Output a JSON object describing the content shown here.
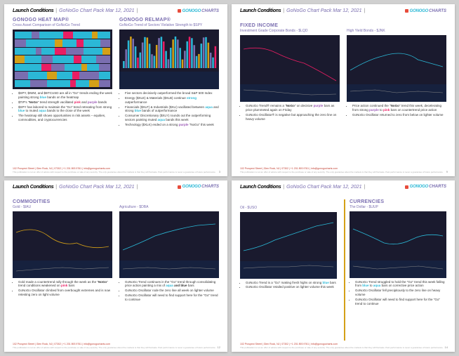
{
  "header": {
    "launch": "Launch Conditions",
    "subtitle": "GoNoGo Chart Pack Mar 12, 2021",
    "logo_go": "GONOGO",
    "logo_charts": "CHARTS"
  },
  "footer_address": "102 Prospect Street | Glen Rock, NJ | 07302 | +1 201 893 9761 | info@gonogocharts.com",
  "disclaimer": "This publication is not an offer of advice with respect to the purchase or sale of any security. The only guarantee about the markets is that they will fluctuate. Past performance is never a guarantee of future performance.",
  "slide1": {
    "left_title": "GONOGO HEAT MAP®",
    "left_sub": "Cross Asset Comparison of GoNoGo Trend",
    "right_title": "GONOGO RELMAP®",
    "right_sub": "GoNoGo Trend of Sectors' Relative Strength to $SPY",
    "heatmap_rows": [
      [
        [
          "#2bb8d6",
          18
        ],
        [
          "#7a6eb0",
          8
        ],
        [
          "#2bb8d6",
          25
        ],
        [
          "#e91e63",
          10
        ],
        [
          "#2bb8d6",
          20
        ],
        [
          "#d4a017",
          6
        ],
        [
          "#2bb8d6",
          13
        ]
      ],
      [
        [
          "#7a6eb0",
          12
        ],
        [
          "#2bb8d6",
          30
        ],
        [
          "#d4a017",
          8
        ],
        [
          "#2bb8d6",
          15
        ],
        [
          "#e91e63",
          7
        ],
        [
          "#2bb8d6",
          18
        ],
        [
          "#7a6eb0",
          10
        ]
      ],
      [
        [
          "#2bb8d6",
          22
        ],
        [
          "#7a6eb0",
          6
        ],
        [
          "#2bb8d6",
          14
        ],
        [
          "#e91e63",
          12
        ],
        [
          "#7a6eb0",
          18
        ],
        [
          "#2bb8d6",
          20
        ],
        [
          "#d4a017",
          8
        ]
      ],
      [
        [
          "#d4a017",
          10
        ],
        [
          "#2bb8d6",
          18
        ],
        [
          "#7a6eb0",
          12
        ],
        [
          "#2bb8d6",
          22
        ],
        [
          "#e91e63",
          8
        ],
        [
          "#2bb8d6",
          15
        ],
        [
          "#7a6eb0",
          15
        ]
      ],
      [
        [
          "#2bb8d6",
          28
        ],
        [
          "#e91e63",
          10
        ],
        [
          "#7a6eb0",
          14
        ],
        [
          "#2bb8d6",
          18
        ],
        [
          "#d4a017",
          6
        ],
        [
          "#2bb8d6",
          12
        ],
        [
          "#7a6eb0",
          12
        ]
      ],
      [
        [
          "#7a6eb0",
          14
        ],
        [
          "#2bb8d6",
          20
        ],
        [
          "#d4a017",
          10
        ],
        [
          "#2bb8d6",
          16
        ],
        [
          "#e91e63",
          8
        ],
        [
          "#7a6eb0",
          20
        ],
        [
          "#2bb8d6",
          12
        ]
      ],
      [
        [
          "#2bb8d6",
          16
        ],
        [
          "#7a6eb0",
          18
        ],
        [
          "#2bb8d6",
          24
        ],
        [
          "#e91e63",
          6
        ],
        [
          "#2bb8d6",
          14
        ],
        [
          "#d4a017",
          10
        ],
        [
          "#7a6eb0",
          12
        ]
      ]
    ],
    "left_bullets": [
      "$SPY, $IWM, and $BTCUSD are all in \"Go\" trends ending the week painting strong <span class=\"blue\">blue</span> bands on the heatmap",
      "$TIP's \"<span class=\"nodice\">NoGo</span>\" trend strength vacillated <span class=\"pink\">pink</span> and <span class=\"purple\">purple</span> bands",
      "$SPY has labored to maintain the \"Go\" trend retreating from strong <span class=\"blue\">blue</span> to muted <span class=\"blue\">aqua</span> bands to the close of the week",
      "The heatmap still shows opportunities in risk assets – equities, commodities, and cryptocurrencies"
    ],
    "right_bullets": [
      "Five sectors decisively outperformed the broad S&P 500 Index",
      "Energy ($XLE) & Materials ($XLB) continue <span class=\"blue\">strong</span> outperformance",
      "Financials ($XLF) & Industrials ($XLI) vacillated between <span class=\"blue\">aqua</span> and strong <span class=\"blue\">blue</span> bands of outperformance",
      "Consumer Discretionary ($XLY) rounds out the outperforming sectors painting muted <span class=\"blue\">aqua</span> bands this week",
      "Technology ($XLK) ended on a strong <span class=\"purple\">purple</span> \"NoGo\" this week"
    ],
    "page": "3"
  },
  "slide2": {
    "section_title": "FIXED INCOME",
    "left_sub": "Investment Grade Corporate Bonds - $LQD",
    "right_sub": "High Yield Bonds - $JNK",
    "left_bullets": [
      "GoNoGo Trend® remains a \"<span class=\"nodice\">NoGo</span>\" on decisive <span class=\"purple\">purple</span> bars as price plummeted again on Friday",
      "GoNoGo Oscillator® is negative but approaching the zero line on heavy volume"
    ],
    "right_bullets": [
      "Price action continued the \"<span class=\"nodice\">NoGo</span>\" trend this week, decelerating from strong <span class=\"purple\">purple</span> to <span class=\"pink\">pink</span> bars on countertrend price action",
      "GoNoGo Oscillator returned to zero from below on lighter volume"
    ],
    "page": "9"
  },
  "slide3": {
    "section_title": "COMMODITIES",
    "left_sub": "Gold - $IAU",
    "right_sub": "Agriculture - $DBA",
    "left_bullets": [
      "Gold made a countertrend rally through the week as the \"<span class=\"nodice\">NoGo</span>\" trend conditions weakened on <span class=\"pink\">pink</span> bars",
      "GoNoGo Oscillator climbed from overbought extremes and is now retesting zero on light volume"
    ],
    "right_bullets": [
      "GoNoGo Trend continues in the \"Go\" trend through consolidating price action painting a mix of <span class=\"blue\">aqua</span> <span class=\"nodice\">and blue</span> bars",
      "GoNoGo Oscillator rode the zero line all week on lighter volume",
      "GoNoGo Oscillator will need to find support here for the \"Go\" trend to continue"
    ],
    "page": "12"
  },
  "slide4": {
    "left_sub": "Oil - $USO",
    "right_title": "CURRENCIES",
    "right_sub": "The Dollar - $UUP",
    "left_bullets": [
      "GoNoGo Trend is a \"Go\" making fresh highs on strong <span class=\"blue\">blue</span> bars",
      "GoNoGo Oscillator retailed positive on lighter volume this week"
    ],
    "right_bullets": [
      "GoNoGo Trend struggled to hold the \"Go\" trend this week falling from <span class=\"blue\">blue</span> to <span class=\"blue\">aqua</span> bars on corrective price action",
      "GoNoGo Oscillator fell precipitously to the zero line on heavy volume",
      "GoNoGo Oscillator will need to find support here for the \"Go\" trend to continue"
    ],
    "page": "14"
  },
  "style": {
    "bg_dark": "#1a1a2e",
    "accent_teal": "#2bb8d6",
    "accent_purple": "#7a6eb0"
  }
}
